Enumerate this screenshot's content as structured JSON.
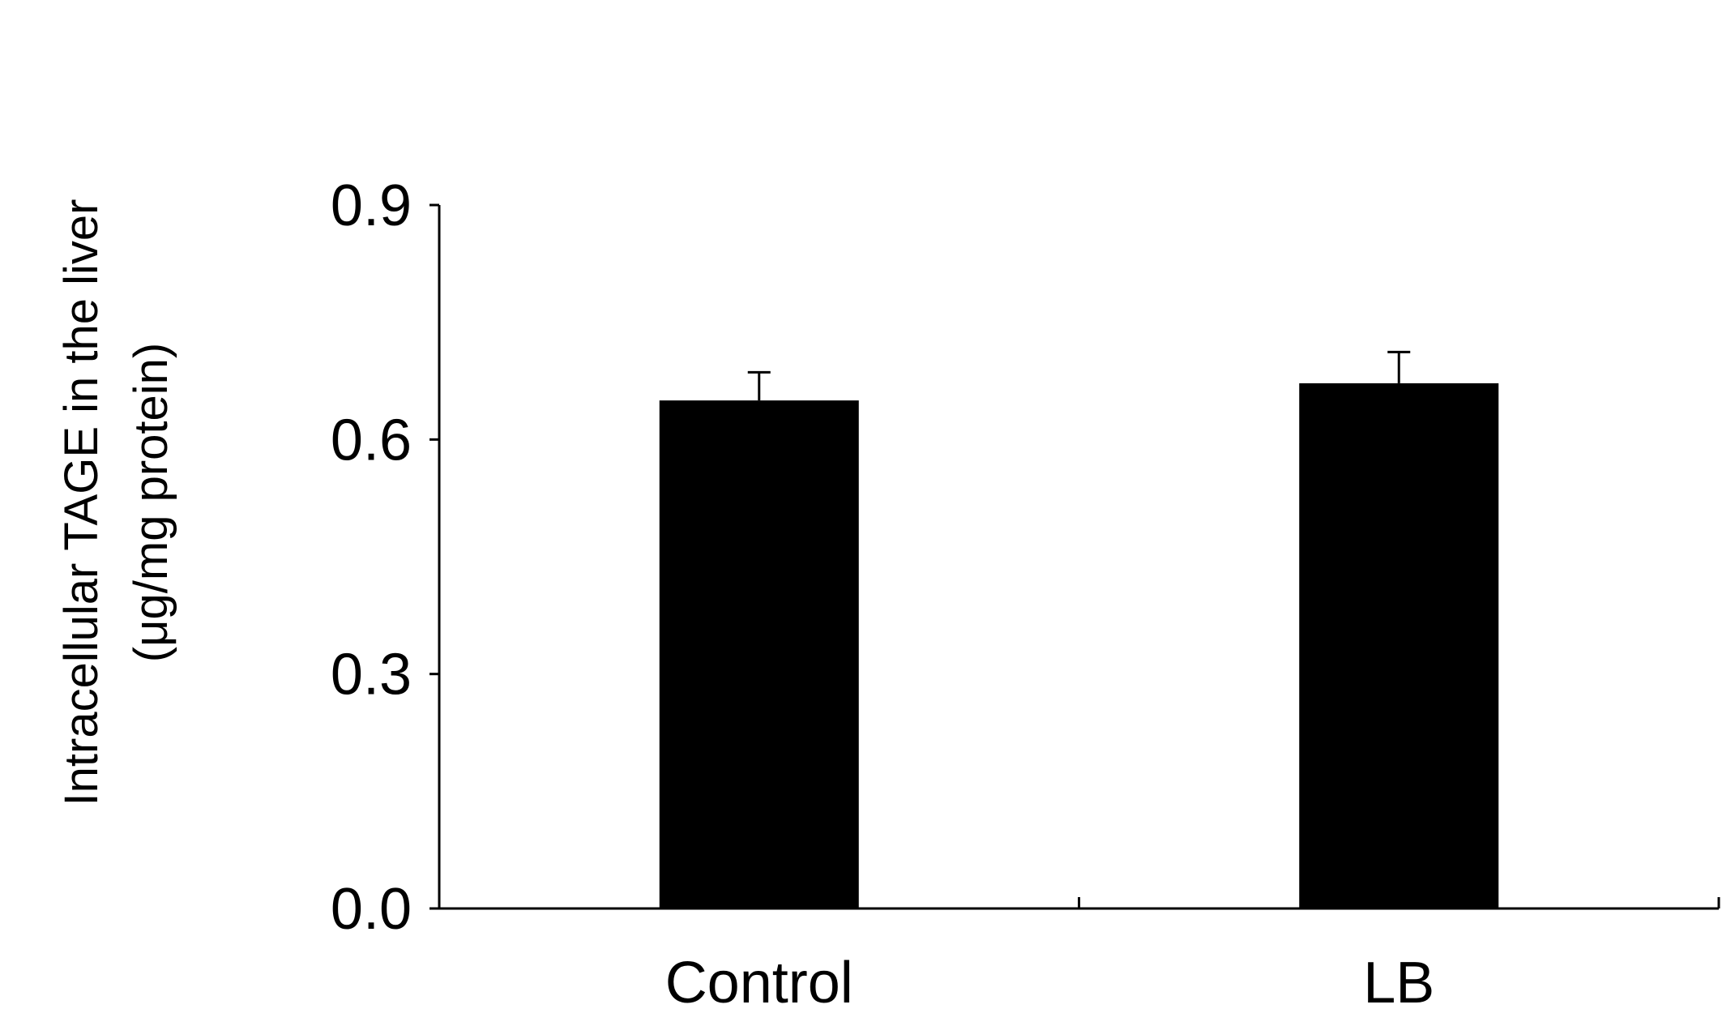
{
  "chart_data": {
    "type": "bar",
    "categories": [
      "Control",
      "LB"
    ],
    "values": [
      0.65,
      0.672
    ],
    "errors": [
      0.036,
      0.04
    ],
    "ylabel_line1": "Intracellular TAGE in the liver",
    "ylabel_line2": "(μg/mg protein)",
    "xlabel": "",
    "ylim": [
      0,
      0.9
    ],
    "yticks": [
      0,
      0.3,
      0.6,
      0.9
    ],
    "ytick_labels": [
      "0.0",
      "0.3",
      "0.6",
      "0.9"
    ],
    "grid": false,
    "legend": "none",
    "bar_color": "#000000",
    "error_bar_color": "#000000"
  }
}
